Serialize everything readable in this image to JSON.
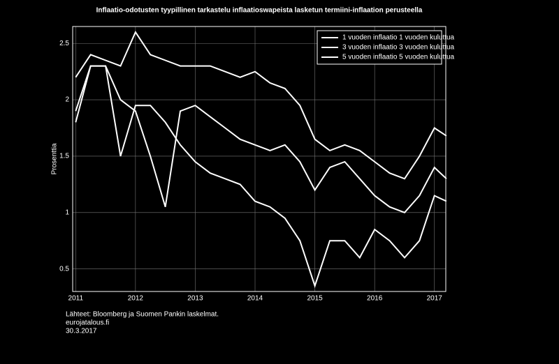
{
  "chart_data": {
    "type": "line",
    "title": "Inflaatio-odotusten tyypillinen tarkastelu inflaatioswapeista lasketun termiini-inflaation perusteella",
    "ylabel": "Prosenttia",
    "x": [
      2011,
      2011.25,
      2011.5,
      2011.75,
      2012,
      2012.25,
      2012.5,
      2012.75,
      2013,
      2013.25,
      2013.5,
      2013.75,
      2014,
      2014.25,
      2014.5,
      2014.75,
      2015,
      2015.25,
      2015.5,
      2015.75,
      2016,
      2016.25,
      2016.5,
      2016.75,
      2017,
      2017.2
    ],
    "series": [
      {
        "name": "1 vuoden inflaatio 1 vuoden kuluttua",
        "color": "#ffffff",
        "values": [
          1.8,
          2.3,
          2.3,
          1.5,
          1.95,
          1.95,
          1.8,
          1.6,
          1.45,
          1.35,
          1.3,
          1.25,
          1.1,
          1.05,
          0.95,
          0.75,
          0.35,
          0.75,
          0.75,
          0.6,
          0.85,
          0.75,
          0.6,
          0.75,
          1.15,
          1.1
        ]
      },
      {
        "name": "3 vuoden inflaatio 3 vuoden kuluttua",
        "color": "#ffffff",
        "values": [
          1.9,
          2.3,
          2.3,
          2.0,
          1.9,
          1.5,
          1.05,
          1.9,
          1.95,
          1.85,
          1.75,
          1.65,
          1.6,
          1.55,
          1.6,
          1.45,
          1.2,
          1.4,
          1.45,
          1.3,
          1.15,
          1.05,
          1.0,
          1.15,
          1.4,
          1.3
        ]
      },
      {
        "name": "5 vuoden inflaatio 5 vuoden kuluttua",
        "color": "#ffffff",
        "values": [
          2.2,
          2.4,
          2.35,
          2.3,
          2.6,
          2.4,
          2.35,
          2.3,
          2.3,
          2.3,
          2.25,
          2.2,
          2.25,
          2.15,
          2.1,
          1.95,
          1.65,
          1.55,
          1.6,
          1.55,
          1.45,
          1.35,
          1.3,
          1.5,
          1.75,
          1.68
        ]
      }
    ],
    "xlim": [
      2010.95,
      2017.19
    ],
    "xticks": [
      2011,
      2012,
      2013,
      2014,
      2015,
      2016,
      2017
    ],
    "ylim": [
      0.3,
      2.65
    ],
    "yticks": [
      0.5,
      1,
      1.5,
      2,
      2.5
    ],
    "grid": true,
    "legend": "upper right",
    "footer": [
      "Lähteet: Bloomberg ja Suomen Pankin laskelmat.",
      "eurojatalous.fi",
      "30.3.2017"
    ]
  }
}
